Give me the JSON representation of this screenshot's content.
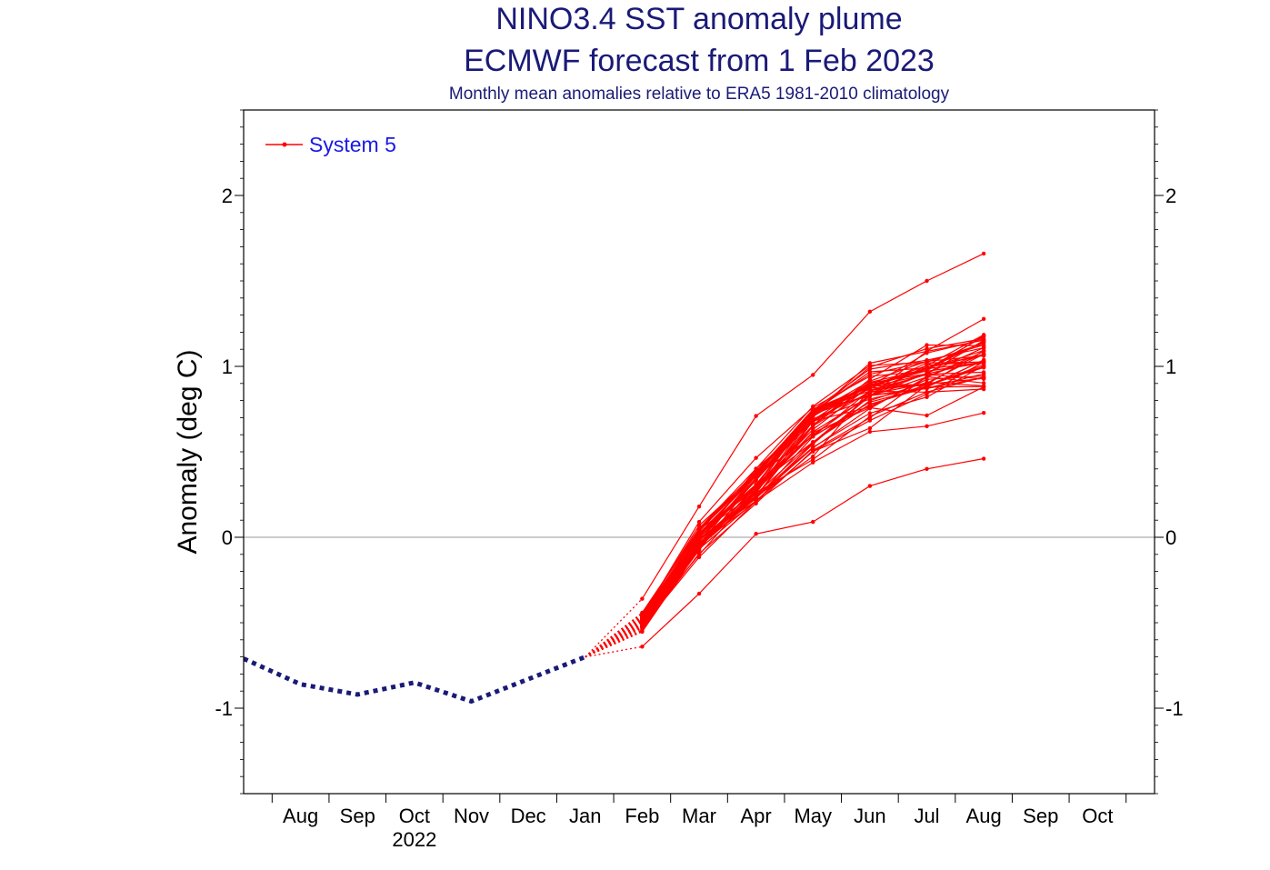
{
  "chart_data": {
    "type": "line",
    "title": "NINO3.4 SST anomaly plume",
    "subtitle": "ECMWF forecast from 1 Feb 2023",
    "caption": "Monthly mean anomalies relative to ERA5 1981-2010 climatology",
    "ylabel": "Anomaly (deg C)",
    "xlabel": "",
    "ylim": [
      -1.5,
      2.5
    ],
    "yticks": [
      -1,
      0,
      1,
      2
    ],
    "xticks": [
      "Aug",
      "Sep",
      "Oct",
      "Nov",
      "Dec",
      "Jan",
      "Feb",
      "Mar",
      "Apr",
      "May",
      "Jun",
      "Jul",
      "Aug",
      "Sep",
      "Oct"
    ],
    "year_label": "2022",
    "year_label_under": "Oct",
    "legend": [
      {
        "name": "System 5",
        "color": "#ff0000"
      }
    ],
    "observed": {
      "color": "#1a1a78",
      "months": [
        "Jul",
        "Aug",
        "Sep",
        "Oct",
        "Nov",
        "Dec",
        "Jan"
      ],
      "values": [
        -0.71,
        -0.86,
        -0.92,
        -0.85,
        -0.96,
        -0.83,
        -0.7
      ]
    },
    "forecast_months": [
      "Feb",
      "Mar",
      "Apr",
      "May",
      "Jun",
      "Jul",
      "Aug"
    ],
    "forecast_color": "#ff0000",
    "ensemble_size": 51,
    "forecast_start_value": -0.7,
    "forecast_envelope": {
      "lowest": [
        -0.64,
        -0.33,
        0.02,
        0.09,
        0.3,
        0.4,
        0.46
      ],
      "median": [
        -0.5,
        0.0,
        0.3,
        0.7,
        0.88,
        0.98,
        1.05
      ],
      "highest": [
        -0.36,
        0.18,
        0.71,
        0.95,
        1.32,
        1.5,
        1.66
      ]
    }
  }
}
